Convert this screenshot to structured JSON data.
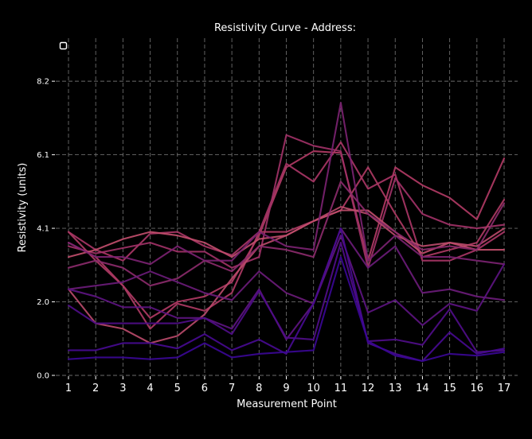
{
  "chart_data": {
    "type": "line",
    "title": "Resistivity Curve - Address:",
    "xlabel": "Measurement Point",
    "ylabel": "Resistivity (units)",
    "x": [
      1,
      2,
      3,
      4,
      5,
      6,
      7,
      8,
      9,
      10,
      11,
      12,
      13,
      14,
      15,
      16,
      17
    ],
    "xlim": [
      0.8,
      17.2
    ],
    "ylim": [
      0,
      9.4
    ],
    "yticks": [
      "0.0",
      "2.0",
      "4.1",
      "6.1",
      "8.2"
    ],
    "ytick_values": [
      0.0,
      2.05,
      4.1,
      6.15,
      8.2
    ],
    "grid": true,
    "legend": "top-left (single empty entry)",
    "series": [
      {
        "color": "#b03a64",
        "values": [
          3.7,
          3.3,
          2.5,
          1.6,
          2.05,
          2.2,
          2.6,
          3.9,
          5.8,
          6.25,
          6.2,
          3.2,
          5.8,
          5.3,
          4.95,
          4.35,
          6.05
        ]
      },
      {
        "color": "#a83565",
        "values": [
          4.0,
          3.5,
          3.2,
          3.95,
          4.0,
          3.6,
          3.35,
          4.0,
          5.9,
          5.4,
          6.5,
          5.2,
          5.6,
          3.2,
          3.2,
          3.5,
          4.0
        ]
      },
      {
        "color": "#9f3166",
        "values": [
          3.6,
          3.4,
          3.55,
          3.7,
          3.45,
          3.45,
          3.0,
          3.3,
          6.7,
          6.4,
          6.25,
          3.0,
          5.5,
          4.5,
          4.2,
          4.1,
          4.2
        ]
      },
      {
        "color": "#ad3963",
        "values": [
          4.0,
          3.2,
          2.5,
          1.3,
          2.0,
          1.8,
          2.3,
          4.0,
          4.0,
          4.3,
          4.6,
          5.8,
          4.5,
          3.3,
          3.5,
          3.7,
          4.9
        ]
      },
      {
        "color": "#b84a6a",
        "values": [
          2.4,
          1.45,
          1.3,
          0.9,
          1.1,
          1.7,
          2.7,
          3.6,
          3.9,
          4.3,
          4.7,
          4.5,
          3.9,
          3.6,
          3.7,
          3.6,
          4.1
        ]
      },
      {
        "color": "#c04d6b",
        "values": [
          3.3,
          3.5,
          3.8,
          4.0,
          3.9,
          3.7,
          3.3,
          3.8,
          3.9,
          4.3,
          4.6,
          4.6,
          4.0,
          3.4,
          3.7,
          3.5,
          3.5
        ]
      },
      {
        "color": "#8a2a6a",
        "values": [
          3.0,
          3.2,
          3.0,
          2.5,
          2.7,
          3.2,
          2.9,
          3.6,
          3.5,
          3.3,
          5.4,
          4.5,
          4.0,
          3.5,
          3.6,
          3.5,
          4.8
        ]
      },
      {
        "color": "#7a2270",
        "values": [
          3.7,
          3.3,
          3.3,
          3.1,
          3.6,
          3.2,
          3.2,
          4.0,
          3.6,
          3.5,
          7.6,
          3.2,
          3.9,
          3.3,
          3.3,
          3.2,
          3.1
        ]
      },
      {
        "color": "#6a1b78",
        "values": [
          2.4,
          2.5,
          2.6,
          2.9,
          2.6,
          2.3,
          2.1,
          2.9,
          2.3,
          2.0,
          4.1,
          3.0,
          3.6,
          2.3,
          2.4,
          2.2,
          2.1
        ]
      },
      {
        "color": "#5c1480",
        "values": [
          2.4,
          2.2,
          1.9,
          1.9,
          1.6,
          1.6,
          1.3,
          2.4,
          1.0,
          2.0,
          3.9,
          1.75,
          2.1,
          1.4,
          2.0,
          1.8,
          3.1
        ]
      },
      {
        "color": "#4f0d88",
        "values": [
          1.95,
          1.45,
          1.45,
          1.45,
          1.45,
          1.6,
          1.15,
          2.35,
          1.05,
          1.0,
          3.7,
          0.95,
          1.0,
          0.85,
          1.85,
          0.65,
          0.7
        ]
      },
      {
        "color": "#460a90",
        "values": [
          0.7,
          0.7,
          0.9,
          0.9,
          0.75,
          1.15,
          0.7,
          1.0,
          0.6,
          2.0,
          4.1,
          0.9,
          0.6,
          0.4,
          1.2,
          0.6,
          0.75
        ]
      },
      {
        "color": "#3a0794",
        "values": [
          0.45,
          0.5,
          0.5,
          0.45,
          0.5,
          0.9,
          0.5,
          0.6,
          0.65,
          0.7,
          3.3,
          0.95,
          0.55,
          0.4,
          0.6,
          0.55,
          0.65
        ]
      }
    ]
  }
}
